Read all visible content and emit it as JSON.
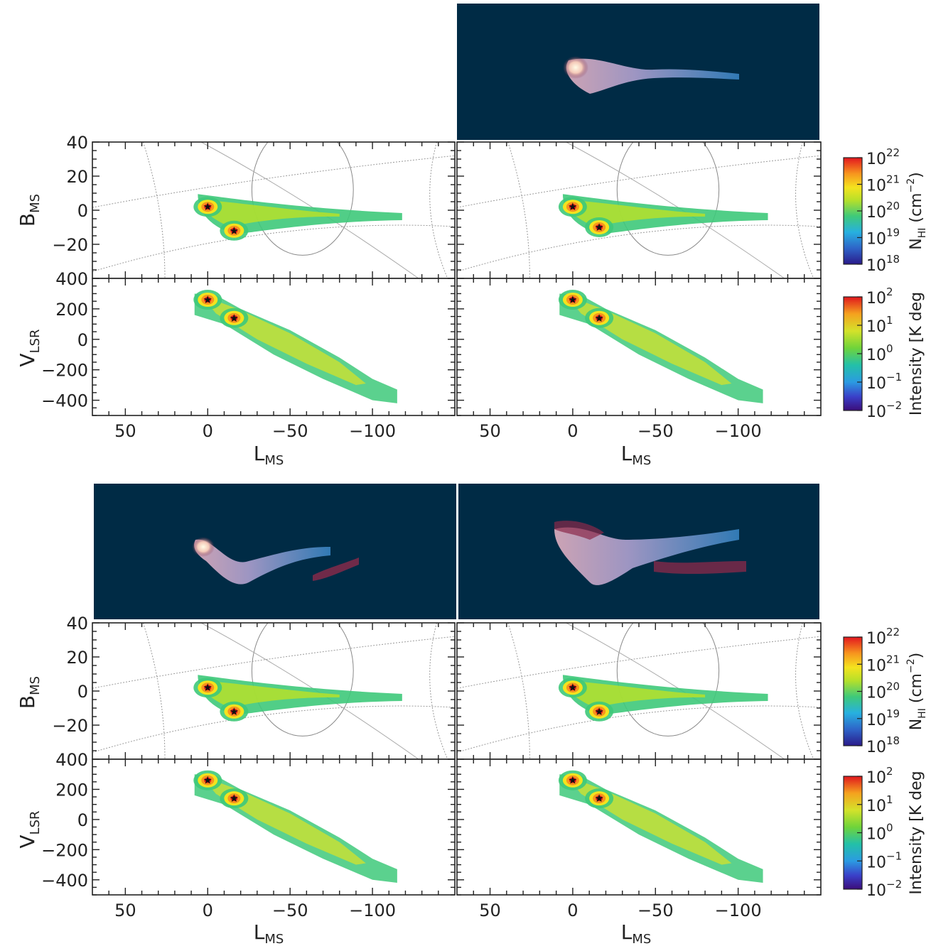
{
  "figure": {
    "top_row": {
      "b_ylabel_main": "B",
      "b_ylabel_sub": "MS",
      "v_ylabel_main": "V",
      "v_ylabel_sub": "LSR",
      "xlabel_main": "L",
      "xlabel_sub": "MS"
    },
    "colorbars": {
      "nhi": {
        "label_main": "N",
        "label_sub": "HI",
        "label_units": " (cm",
        "label_exp": "−2",
        "label_close": ")",
        "ticks": [
          {
            "base": "10",
            "exp": "22"
          },
          {
            "base": "10",
            "exp": "21"
          },
          {
            "base": "10",
            "exp": "20"
          },
          {
            "base": "10",
            "exp": "19"
          },
          {
            "base": "10",
            "exp": "18"
          }
        ]
      },
      "intensity": {
        "label": "Intensity [K deg",
        "ticks": [
          {
            "base": "10",
            "exp": "2"
          },
          {
            "base": "10",
            "exp": "1"
          },
          {
            "base": "10",
            "exp": "0"
          },
          {
            "base": "10",
            "exp": "−1"
          },
          {
            "base": "10",
            "exp": "−2"
          }
        ]
      }
    }
  },
  "chart_data": [
    {
      "type": "heatmap",
      "panel": "B_MS vs L_MS (top-left)",
      "xlabel": "L_MS",
      "ylabel": "B_MS",
      "xlim": [
        70,
        -150
      ],
      "ylim": [
        -40,
        40
      ],
      "yticks": [
        40,
        20,
        0,
        -20
      ],
      "colorbar": "N_HI (cm^-2)",
      "color_range": [
        1e+18,
        1e+22
      ],
      "log_scale": true,
      "markers": [
        {
          "x": 0,
          "y": 2
        },
        {
          "x": -16,
          "y": -12
        }
      ]
    },
    {
      "type": "heatmap",
      "panel": "V_LSR vs L_MS (top-left)",
      "xlabel": "L_MS",
      "ylabel": "V_LSR",
      "xlim": [
        70,
        -150
      ],
      "ylim": [
        -500,
        400
      ],
      "xticks": [
        50,
        0,
        -50,
        -100
      ],
      "yticks": [
        400,
        200,
        0,
        -200,
        -400
      ],
      "colorbar": "Intensity [K deg]",
      "color_range": [
        0.01,
        100
      ],
      "log_scale": true,
      "markers": [
        {
          "x": 0,
          "y": 260
        },
        {
          "x": -16,
          "y": 140
        }
      ]
    },
    {
      "type": "heatmap",
      "panel": "B_MS vs L_MS (top-right, with contours)",
      "xlim": [
        70,
        -150
      ],
      "ylim": [
        -40,
        40
      ],
      "markers": [
        {
          "x": 0,
          "y": 2
        },
        {
          "x": -16,
          "y": -10
        }
      ]
    },
    {
      "type": "heatmap",
      "panel": "V_LSR vs L_MS (top-right, with contours)",
      "xlim": [
        70,
        -150
      ],
      "ylim": [
        -500,
        400
      ],
      "xticks": [
        50,
        0,
        -50,
        -100
      ],
      "markers": [
        {
          "x": 0,
          "y": 260
        },
        {
          "x": -16,
          "y": 140
        }
      ]
    },
    {
      "type": "heatmap",
      "panel": "B_MS vs L_MS (bottom-left)",
      "xlim": [
        70,
        -150
      ],
      "ylim": [
        -40,
        40
      ],
      "yticks": [
        40,
        20,
        0,
        -20
      ],
      "markers": [
        {
          "x": 0,
          "y": 2
        },
        {
          "x": -16,
          "y": -12
        }
      ]
    },
    {
      "type": "heatmap",
      "panel": "V_LSR vs L_MS (bottom-left)",
      "xlim": [
        70,
        -150
      ],
      "ylim": [
        -500,
        400
      ],
      "xticks": [
        50,
        0,
        -50,
        -100
      ],
      "yticks": [
        400,
        200,
        0,
        -200,
        -400
      ],
      "markers": [
        {
          "x": 0,
          "y": 260
        },
        {
          "x": -16,
          "y": 140
        }
      ]
    },
    {
      "type": "heatmap",
      "panel": "B_MS vs L_MS (bottom-right)",
      "xlim": [
        70,
        -150
      ],
      "ylim": [
        -40,
        40
      ],
      "markers": [
        {
          "x": 0,
          "y": 2
        },
        {
          "x": -16,
          "y": -12
        }
      ]
    },
    {
      "type": "heatmap",
      "panel": "V_LSR vs L_MS (bottom-right)",
      "xlim": [
        70,
        -150
      ],
      "ylim": [
        -500,
        400
      ],
      "xticks": [
        50,
        0,
        -50,
        -100
      ],
      "markers": [
        {
          "x": 0,
          "y": 260
        },
        {
          "x": -16,
          "y": 140
        }
      ]
    }
  ],
  "colors": {
    "sky_background": "#002b45",
    "frame": "#222222"
  }
}
